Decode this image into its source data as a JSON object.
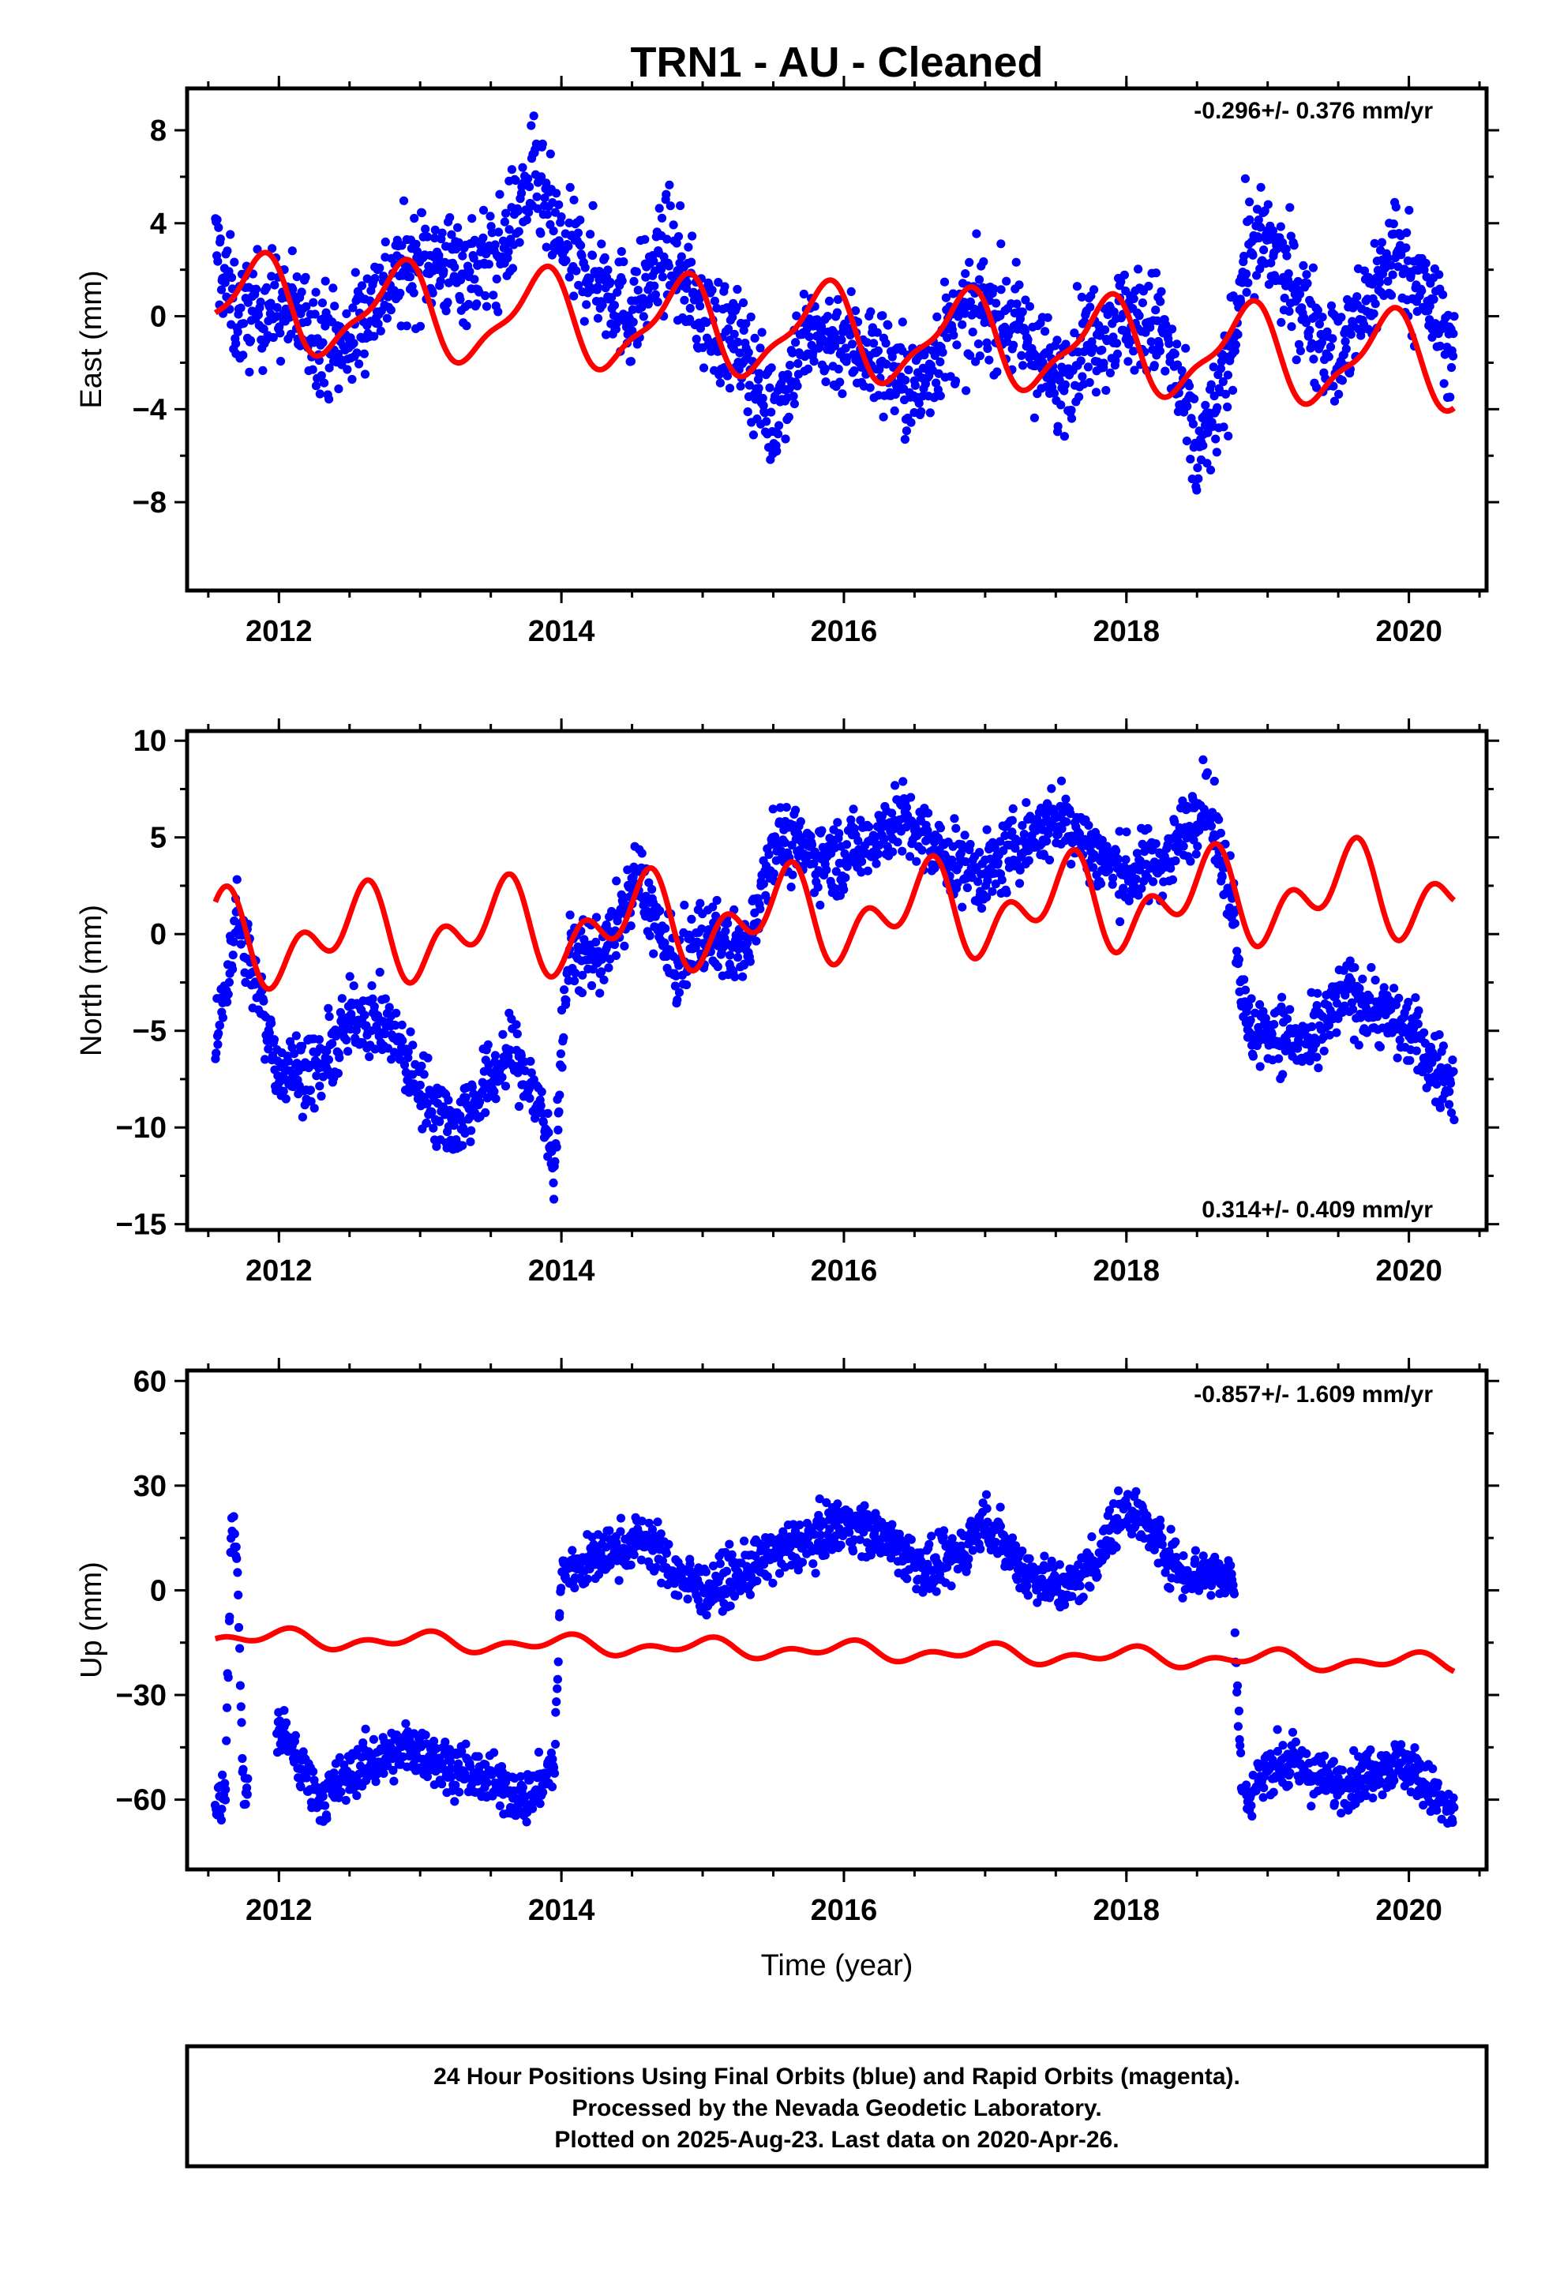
{
  "title": "TRN1  - AU - Cleaned",
  "xlabel": "Time (year)",
  "x_ticks": [
    "2012",
    "2014",
    "2016",
    "2018",
    "2020"
  ],
  "colors": {
    "final_orbits": "#0000ff",
    "model": "#ff0000",
    "frame": "#000000"
  },
  "note_lines": [
    "24 Hour Positions Using Final Orbits (blue) and Rapid Orbits (magenta).",
    "Processed by the Nevada Geodetic Laboratory.",
    "Plotted on 2025-Aug-23. Last data on 2020-Apr-26."
  ],
  "chart_data": [
    {
      "type": "scatter",
      "ylabel": "East (mm)",
      "rate_label": "-0.296+/- 0.376 mm/yr",
      "xlim": [
        2011.35,
        2020.55
      ],
      "ylim": [
        -11.8,
        9.8
      ],
      "y_ticks": [
        8,
        4,
        0,
        -4,
        -8
      ],
      "y_tick_labels": [
        "8",
        "4",
        "0",
        "−4",
        "−8"
      ],
      "x_range_data": [
        2011.55,
        2020.32
      ],
      "scatter_envelope": {
        "x": [
          2011.55,
          2011.7,
          2012.0,
          2012.25,
          2012.45,
          2012.7,
          2013.0,
          2013.3,
          2013.55,
          2013.8,
          2014.0,
          2014.3,
          2014.5,
          2014.75,
          2015.0,
          2015.3,
          2015.5,
          2015.7,
          2016.0,
          2016.3,
          2016.5,
          2016.7,
          2017.0,
          2017.3,
          2017.5,
          2017.7,
          2018.0,
          2018.25,
          2018.5,
          2018.7,
          2018.85,
          2019.0,
          2019.3,
          2019.5,
          2019.7,
          2019.9,
          2020.1,
          2020.32
        ],
        "y": [
          3,
          0,
          0.5,
          -0.5,
          -1.5,
          1,
          2.5,
          2,
          2.5,
          6,
          3,
          1.5,
          0,
          3,
          0,
          -1.5,
          -4.5,
          -1,
          -1,
          -2,
          -3.5,
          -1,
          0.5,
          -1,
          -3,
          -1,
          0,
          -0.5,
          -6,
          -3,
          3,
          3,
          0,
          -2,
          0.5,
          3,
          1,
          -1.5
        ]
      },
      "scatter_spread": 2.2,
      "model_trend_mm_per_yr": -0.296,
      "model_offset": 0.55,
      "model_annual_amp": 1.9,
      "model_annual_peak": 2011.85,
      "model_semiannual_amp": 0.6
    },
    {
      "type": "scatter",
      "ylabel": "North (mm)",
      "rate_label": "0.314+/- 0.409 mm/yr",
      "xlim": [
        2011.35,
        2020.55
      ],
      "ylim": [
        -15.3,
        10.5
      ],
      "y_ticks": [
        10,
        5,
        0,
        -5,
        -10,
        -15
      ],
      "y_tick_labels": [
        "10",
        "5",
        "0",
        "−5",
        "−10",
        "−15"
      ],
      "x_range_data": [
        2011.55,
        2020.32
      ],
      "scatter_envelope": {
        "x": [
          2011.55,
          2011.7,
          2011.85,
          2012.0,
          2012.3,
          2012.55,
          2012.8,
          2013.0,
          2013.25,
          2013.45,
          2013.65,
          2013.85,
          2013.95,
          2014.05,
          2014.3,
          2014.55,
          2014.8,
          2015.0,
          2015.3,
          2015.5,
          2015.8,
          2016.0,
          2016.4,
          2016.7,
          2017.0,
          2017.3,
          2017.55,
          2017.8,
          2018.0,
          2018.3,
          2018.55,
          2018.75,
          2018.85,
          2019.05,
          2019.3,
          2019.55,
          2019.8,
          2020.0,
          2020.2,
          2020.32
        ],
        "y": [
          -6,
          1,
          -3,
          -7,
          -7,
          -4,
          -5,
          -8,
          -10,
          -8,
          -6,
          -9,
          -12,
          -1,
          -1,
          3,
          -2,
          0,
          -1,
          5,
          4,
          4,
          6,
          4,
          3,
          5,
          6,
          4,
          3,
          4,
          7,
          2,
          -5,
          -5,
          -6,
          -3,
          -4,
          -5,
          -7,
          -8
        ]
      },
      "scatter_spread": 1.8,
      "model_trend_mm_per_yr": 0.314,
      "model_offset": -0.4,
      "model_annual_amp": 1.6,
      "model_annual_peak": 2011.55,
      "model_semiannual_amp": 1.5
    },
    {
      "type": "scatter",
      "ylabel": "Up (mm)",
      "rate_label": "-0.857+/- 1.609 mm/yr",
      "xlim": [
        2011.35,
        2020.55
      ],
      "ylim": [
        -80,
        63
      ],
      "y_ticks": [
        60,
        30,
        0,
        -30,
        -60
      ],
      "y_tick_labels": [
        "60",
        "30",
        "0",
        "−30",
        "−60"
      ],
      "x_range_data": [
        2011.55,
        2020.32
      ],
      "scatter_envelope": {
        "x": [
          2011.55,
          2011.62,
          2011.66,
          2011.7,
          2011.75,
          2012.0,
          2012.3,
          2012.6,
          2012.9,
          2013.2,
          2013.5,
          2013.75,
          2013.95,
          2014.0,
          2014.3,
          2014.6,
          2014.8,
          2015.0,
          2015.3,
          2015.5,
          2015.8,
          2016.0,
          2016.3,
          2016.6,
          2016.8,
          2017.0,
          2017.3,
          2017.6,
          2017.8,
          2018.0,
          2018.2,
          2018.4,
          2018.6,
          2018.75,
          2018.82,
          2018.85,
          2019.0,
          2019.2,
          2019.4,
          2019.6,
          2019.8,
          2020.0,
          2020.2,
          2020.32
        ],
        "y": [
          -60,
          -60,
          15,
          15,
          -60,
          -40,
          -60,
          -50,
          -45,
          -50,
          -55,
          -60,
          -50,
          5,
          10,
          15,
          5,
          0,
          5,
          10,
          15,
          20,
          15,
          5,
          10,
          20,
          5,
          0,
          10,
          25,
          15,
          5,
          5,
          5,
          -60,
          -60,
          -50,
          -50,
          -55,
          -55,
          -50,
          -50,
          -60,
          -65
        ]
      },
      "scatter_gaps": [
        [
          2011.78,
          2011.98
        ],
        [
          2018.82,
          2018.84
        ]
      ],
      "scatter_spread": 7,
      "model_trend_mm_per_yr": -0.857,
      "model_offset": -13.5,
      "model_annual_amp": 1.8,
      "model_annual_peak": 2012.0,
      "model_semiannual_amp": 1.6
    }
  ]
}
